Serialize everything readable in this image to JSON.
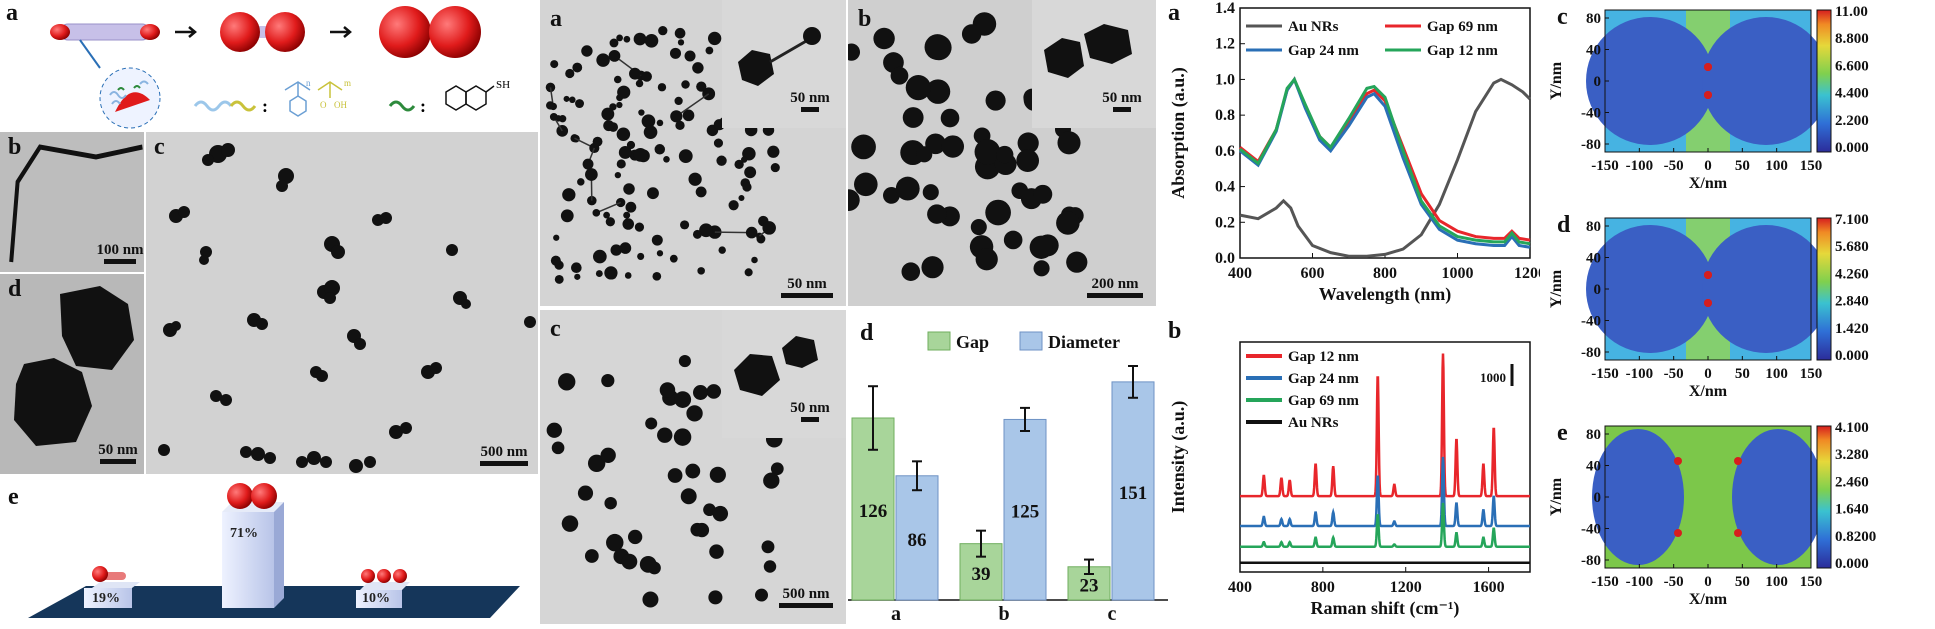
{
  "left_block": {
    "schematic_label": "a",
    "legend_colon_1": ":",
    "legend_colon_2": ":",
    "ligand_sh": "SH",
    "ligand_n": "n",
    "ligand_m": "m",
    "ligand_o": "O",
    "ligand_oh": "OH",
    "tem_b": {
      "label": "b",
      "scale": "100 nm"
    },
    "tem_c": {
      "label": "c",
      "scale": "500 nm"
    },
    "tem_d": {
      "label": "d",
      "scale": "50 nm"
    },
    "bar3d": {
      "label": "e",
      "values": [
        "19%",
        "71%",
        "10%"
      ]
    }
  },
  "middle_block": {
    "tem_a": {
      "label": "a",
      "scale": "50 nm",
      "inset_scale": "50 nm"
    },
    "tem_b": {
      "label": "b",
      "scale": "200 nm",
      "inset_scale": "50 nm"
    },
    "tem_c": {
      "label": "c",
      "scale": "500 nm",
      "inset_scale": "50 nm"
    }
  },
  "colors": {
    "au_nrs": "#555555",
    "gap69": "#e8262b",
    "gap24": "#2a6fb6",
    "gap12": "#25a55a",
    "bar_gap": "#a8d59a",
    "bar_diameter": "#a9c6e8"
  },
  "chart_data": [
    {
      "id": "absorption",
      "type": "line",
      "label": "a",
      "xlabel": "Wavelength (nm)",
      "ylabel": "Absorption (a.u.)",
      "xlim": [
        400,
        1200
      ],
      "ylim": [
        0.0,
        1.4
      ],
      "xticks": [
        "400",
        "600",
        "800",
        "1000",
        "1200"
      ],
      "yticks": [
        "0.0",
        "0.2",
        "0.4",
        "0.6",
        "0.8",
        "1.0",
        "1.2",
        "1.4"
      ],
      "series": [
        {
          "name": "Au NRs",
          "x": [
            400,
            450,
            500,
            520,
            540,
            560,
            600,
            650,
            700,
            750,
            800,
            850,
            900,
            950,
            1000,
            1050,
            1100,
            1120,
            1150,
            1180,
            1200
          ],
          "y": [
            0.24,
            0.22,
            0.28,
            0.32,
            0.28,
            0.18,
            0.07,
            0.03,
            0.01,
            0.01,
            0.02,
            0.05,
            0.13,
            0.3,
            0.55,
            0.82,
            0.98,
            1.0,
            0.97,
            0.93,
            0.89
          ]
        },
        {
          "name": "Gap 69 nm",
          "x": [
            400,
            450,
            500,
            530,
            550,
            580,
            620,
            650,
            700,
            750,
            770,
            800,
            850,
            900,
            950,
            1000,
            1050,
            1100,
            1130,
            1150,
            1170,
            1200
          ],
          "y": [
            0.62,
            0.54,
            0.72,
            0.94,
            1.0,
            0.85,
            0.68,
            0.62,
            0.76,
            0.92,
            0.94,
            0.88,
            0.62,
            0.36,
            0.21,
            0.15,
            0.12,
            0.11,
            0.11,
            0.15,
            0.11,
            0.1
          ]
        },
        {
          "name": "Gap 24 nm",
          "x": [
            400,
            450,
            500,
            530,
            550,
            580,
            620,
            650,
            700,
            750,
            770,
            800,
            850,
            900,
            950,
            1000,
            1050,
            1100,
            1130,
            1150,
            1170,
            1200
          ],
          "y": [
            0.6,
            0.52,
            0.71,
            0.94,
            1.0,
            0.84,
            0.66,
            0.6,
            0.74,
            0.9,
            0.92,
            0.85,
            0.56,
            0.3,
            0.16,
            0.1,
            0.08,
            0.07,
            0.07,
            0.12,
            0.07,
            0.06
          ]
        },
        {
          "name": "Gap 12 nm",
          "x": [
            400,
            450,
            500,
            530,
            550,
            580,
            620,
            650,
            700,
            750,
            770,
            800,
            850,
            900,
            950,
            1000,
            1050,
            1100,
            1130,
            1150,
            1170,
            1200
          ],
          "y": [
            0.61,
            0.53,
            0.72,
            0.95,
            1.0,
            0.86,
            0.68,
            0.62,
            0.78,
            0.95,
            0.96,
            0.9,
            0.6,
            0.32,
            0.18,
            0.12,
            0.1,
            0.09,
            0.09,
            0.14,
            0.09,
            0.08
          ]
        }
      ]
    },
    {
      "id": "gap_diameter",
      "type": "bar",
      "label": "d",
      "categories": [
        "a",
        "b",
        "c"
      ],
      "ylim": [
        0,
        180
      ],
      "series": [
        {
          "name": "Gap",
          "values": [
            126,
            39,
            23
          ],
          "err": [
            22,
            9,
            5
          ]
        },
        {
          "name": "Diameter",
          "values": [
            86,
            125,
            151
          ],
          "err": [
            10,
            8,
            11
          ]
        }
      ]
    },
    {
      "id": "raman",
      "type": "line",
      "label": "b",
      "xlabel": "Raman shift (cm⁻¹)",
      "ylabel": "Intensity (a.u.)",
      "xlim": [
        400,
        1800
      ],
      "xticks": [
        "400",
        "800",
        "1200",
        "1600"
      ],
      "scale_label": "1000",
      "series": [
        {
          "name": "Gap 12 nm",
          "baseline": 0.33,
          "peaks": [
            [
              515,
              0.09
            ],
            [
              600,
              0.08
            ],
            [
              640,
              0.07
            ],
            [
              765,
              0.14
            ],
            [
              850,
              0.13
            ],
            [
              1065,
              0.53
            ],
            [
              1145,
              0.05
            ],
            [
              1380,
              0.62
            ],
            [
              1445,
              0.25
            ],
            [
              1575,
              0.14
            ],
            [
              1625,
              0.3
            ]
          ]
        },
        {
          "name": "Gap 24 nm",
          "baseline": 0.2,
          "peaks": [
            [
              515,
              0.04
            ],
            [
              600,
              0.03
            ],
            [
              640,
              0.03
            ],
            [
              765,
              0.06
            ],
            [
              850,
              0.06
            ],
            [
              1065,
              0.22
            ],
            [
              1145,
              0.02
            ],
            [
              1380,
              0.3
            ],
            [
              1445,
              0.1
            ],
            [
              1575,
              0.07
            ],
            [
              1625,
              0.13
            ]
          ]
        },
        {
          "name": "Gap 69 nm",
          "baseline": 0.11,
          "peaks": [
            [
              515,
              0.02
            ],
            [
              600,
              0.02
            ],
            [
              640,
              0.02
            ],
            [
              765,
              0.04
            ],
            [
              850,
              0.04
            ],
            [
              1065,
              0.14
            ],
            [
              1145,
              0.01
            ],
            [
              1380,
              0.19
            ],
            [
              1445,
              0.06
            ],
            [
              1575,
              0.04
            ],
            [
              1625,
              0.08
            ]
          ]
        },
        {
          "name": "Au NRs",
          "baseline": 0.04,
          "peaks": []
        }
      ]
    }
  ],
  "field_maps": [
    {
      "label": "c",
      "ticks": [
        "11.00",
        "8.800",
        "6.600",
        "4.400",
        "2.200",
        "0.000"
      ]
    },
    {
      "label": "d",
      "ticks": [
        "7.100",
        "5.680",
        "4.260",
        "2.840",
        "1.420",
        "0.000"
      ]
    },
    {
      "label": "e",
      "ticks": [
        "4.100",
        "3.280",
        "2.460",
        "1.640",
        "0.8200",
        "0.000"
      ]
    }
  ],
  "field_axes": {
    "xlabel": "X/nm",
    "ylabel": "Y/nm",
    "xticks": [
      "-150",
      "-100",
      "-50",
      "0",
      "50",
      "100",
      "150"
    ],
    "yticks": [
      "80",
      "40",
      "0",
      "-40",
      "-80"
    ]
  }
}
